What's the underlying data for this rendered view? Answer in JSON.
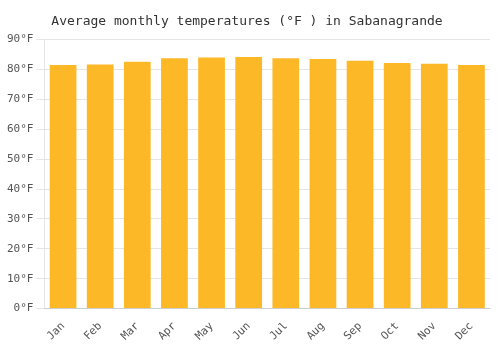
{
  "chart_data": {
    "type": "bar",
    "title": "Average monthly temperatures (°F ) in Sabanagrande",
    "categories": [
      "Jan",
      "Feb",
      "Mar",
      "Apr",
      "May",
      "Jun",
      "Jul",
      "Aug",
      "Sep",
      "Oct",
      "Nov",
      "Dec"
    ],
    "values": [
      81.5,
      81.7,
      82.6,
      83.8,
      84.0,
      84.2,
      83.8,
      83.5,
      82.9,
      82.2,
      81.9,
      81.5
    ],
    "color": "#FDB827",
    "ylim": [
      0,
      90
    ],
    "yticks": [
      {
        "value": 0,
        "label": "0°F"
      },
      {
        "value": 10,
        "label": "10°F"
      },
      {
        "value": 20,
        "label": "20°F"
      },
      {
        "value": 30,
        "label": "30°F"
      },
      {
        "value": 40,
        "label": "40°F"
      },
      {
        "value": 50,
        "label": "50°F"
      },
      {
        "value": 60,
        "label": "60°F"
      },
      {
        "value": 70,
        "label": "70°F"
      },
      {
        "value": 80,
        "label": "80°F"
      },
      {
        "value": 90,
        "label": "90°F"
      }
    ],
    "grid": true
  }
}
